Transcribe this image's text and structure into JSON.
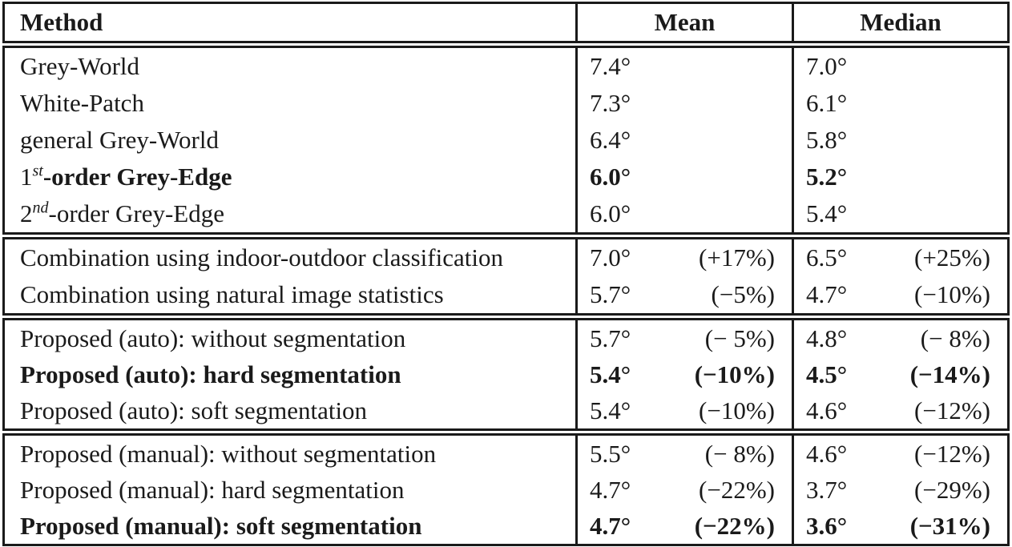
{
  "header": {
    "method": "Method",
    "mean": "Mean",
    "median": "Median"
  },
  "sections": [
    {
      "name": "standard-methods",
      "rows": [
        {
          "method": "Grey-World",
          "mean": "7.4°",
          "median": "7.0°",
          "bold": false
        },
        {
          "method": "White-Patch",
          "mean": "7.3°",
          "median": "6.1°",
          "bold": false
        },
        {
          "method": "general Grey-World",
          "mean": "6.4°",
          "median": "5.8°",
          "bold": false
        },
        {
          "method_prefix": "1",
          "method_sup": "st",
          "method_rest": "-order Grey-Edge",
          "mean": "6.0°",
          "median": "5.2°",
          "bold": true
        },
        {
          "method_prefix": "2",
          "method_sup": "nd",
          "method_rest": "-order Grey-Edge",
          "mean": "6.0°",
          "median": "5.4°",
          "bold": false
        }
      ]
    },
    {
      "name": "combination-methods",
      "rows": [
        {
          "method": "Combination using indoor-outdoor classification",
          "mean": "7.0°",
          "mean_pct": "(+17%)",
          "median": "6.5°",
          "median_pct": "(+25%)",
          "bold": false
        },
        {
          "method": "Combination using natural image statistics",
          "mean": "5.7°",
          "mean_pct": "(−5%)",
          "median": "4.7°",
          "median_pct": "(−10%)",
          "bold": false
        }
      ]
    },
    {
      "name": "proposed-auto-methods",
      "rows": [
        {
          "method": "Proposed (auto): without segmentation",
          "mean": "5.7°",
          "mean_pct": "(− 5%)",
          "median": "4.8°",
          "median_pct": "(− 8%)",
          "bold": false
        },
        {
          "method": "Proposed (auto): hard segmentation",
          "mean": "5.4°",
          "mean_pct": "(−10%)",
          "median": "4.5°",
          "median_pct": "(−14%)",
          "bold": true
        },
        {
          "method": "Proposed (auto): soft segmentation",
          "mean": "5.4°",
          "mean_pct": "(−10%)",
          "median": "4.6°",
          "median_pct": "(−12%)",
          "bold": false
        }
      ]
    },
    {
      "name": "proposed-manual-methods",
      "rows": [
        {
          "method": "Proposed (manual): without segmentation",
          "mean": "5.5°",
          "mean_pct": "(− 8%)",
          "median": "4.6°",
          "median_pct": "(−12%)",
          "bold": false
        },
        {
          "method": "Proposed (manual): hard segmentation",
          "mean": "4.7°",
          "mean_pct": "(−22%)",
          "median": "3.7°",
          "median_pct": "(−29%)",
          "bold": false
        },
        {
          "method": "Proposed (manual): soft segmentation",
          "mean": "4.7°",
          "mean_pct": "(−22%)",
          "median": "3.6°",
          "median_pct": "(−31%)",
          "bold": true
        }
      ]
    }
  ],
  "colors": {
    "border": "#1a1a1a",
    "text": "#1a1a1a",
    "background": "#ffffff"
  }
}
